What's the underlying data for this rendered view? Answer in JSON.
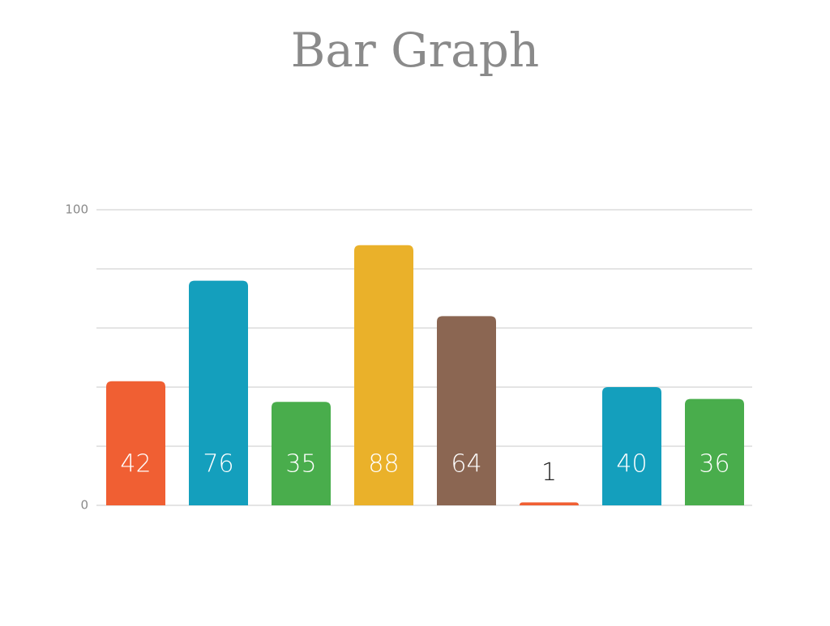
{
  "chart_data": {
    "type": "bar",
    "title": "Bar Graph",
    "categories": [
      null,
      null,
      null,
      null,
      null,
      null,
      null,
      null
    ],
    "values": [
      42,
      76,
      35,
      88,
      64,
      1,
      40,
      36
    ],
    "colors": [
      "#f05f33",
      "#149fbd",
      "#49ad4c",
      "#eab12a",
      "#8b6652",
      "#f05f33",
      "#149fbd",
      "#49ad4c"
    ],
    "ylim": [
      0,
      100
    ],
    "yticks": [
      0,
      100
    ],
    "minor_yticks": [
      20,
      40,
      60,
      80
    ],
    "grid": true
  }
}
